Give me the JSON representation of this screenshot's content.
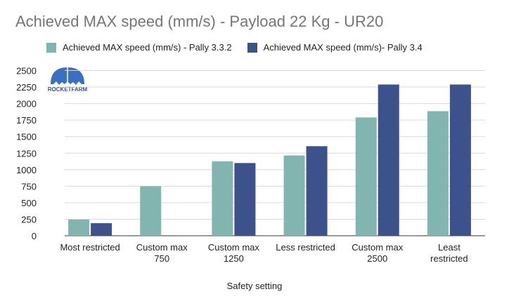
{
  "chart_data": {
    "type": "bar",
    "title": "Achieved MAX speed (mm/s) - Payload 22 Kg - UR20",
    "xlabel": "Safety setting",
    "ylabel": "",
    "ylim": [
      0,
      2500
    ],
    "yticks": [
      0,
      250,
      500,
      750,
      1000,
      1250,
      1500,
      1750,
      2000,
      2250,
      2500
    ],
    "grid": true,
    "legend_position": "top",
    "categories": [
      [
        "Most restricted"
      ],
      [
        "Custom max",
        "750"
      ],
      [
        "Custom max",
        "1250"
      ],
      [
        "Less restricted"
      ],
      [
        "Custom max",
        "2500"
      ],
      [
        "Least",
        "restricted"
      ]
    ],
    "series": [
      {
        "name": "Achieved MAX speed (mm/s) - Pally 3.3.2",
        "color": "#82b4b0",
        "values": [
          245,
          750,
          1125,
          1215,
          1790,
          1885
        ]
      },
      {
        "name": "Achieved MAX speed (mm/s)- Pally 3.4",
        "color": "#3d528b",
        "values": [
          190,
          null,
          1100,
          1355,
          2288,
          2288
        ]
      }
    ]
  },
  "logo": {
    "text": "ROCKETFARM"
  }
}
